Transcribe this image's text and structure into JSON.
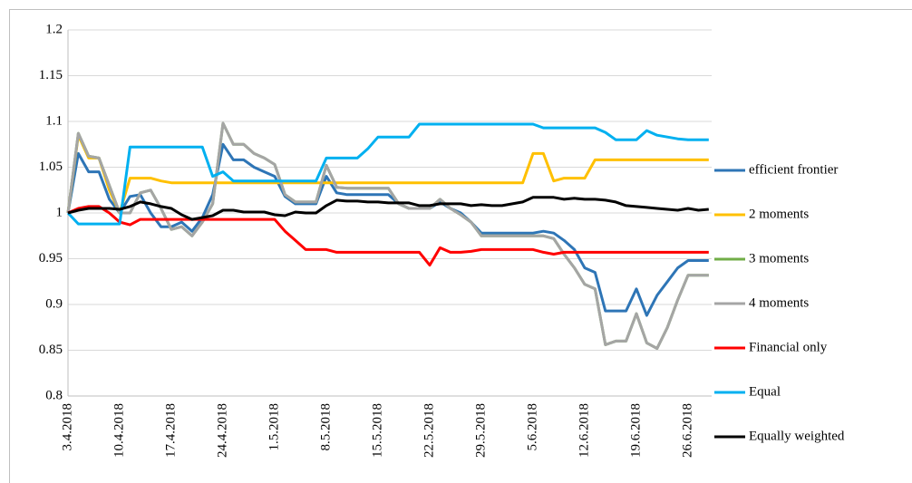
{
  "chart_data": {
    "type": "line",
    "categories": [
      "3.4.2018",
      null,
      null,
      null,
      null,
      "10.4.2018",
      null,
      null,
      null,
      null,
      "17.4.2018",
      null,
      null,
      null,
      null,
      "24.4.2018",
      null,
      null,
      null,
      null,
      "1.5.2018",
      null,
      null,
      null,
      null,
      "8.5.2018",
      null,
      null,
      null,
      null,
      "15.5.2018",
      null,
      null,
      null,
      null,
      "22.5.2018",
      null,
      null,
      null,
      null,
      "29.5.2018",
      null,
      null,
      null,
      null,
      "5.6.2018",
      null,
      null,
      null,
      null,
      "12.6.2018",
      null,
      null,
      null,
      null,
      "19.6.2018",
      null,
      null,
      null,
      null,
      "26.6.2018",
      null,
      null
    ],
    "series": [
      {
        "name": "efficient frontier",
        "color": "#2e75b6",
        "values": [
          1.0,
          1.065,
          1.045,
          1.045,
          1.015,
          1.0,
          1.018,
          1.02,
          1.0,
          0.985,
          0.985,
          0.99,
          0.98,
          0.995,
          1.02,
          1.075,
          1.058,
          1.058,
          1.05,
          1.045,
          1.04,
          1.018,
          1.01,
          1.01,
          1.01,
          1.04,
          1.022,
          1.02,
          1.02,
          1.02,
          1.02,
          1.02,
          1.01,
          1.005,
          1.005,
          1.005,
          1.012,
          1.005,
          1.0,
          0.99,
          0.978,
          0.978,
          0.978,
          0.978,
          0.978,
          0.978,
          0.98,
          0.978,
          0.97,
          0.96,
          0.94,
          0.935,
          0.893,
          0.893,
          0.893,
          0.917,
          0.888,
          0.91,
          0.925,
          0.94,
          0.948,
          0.948,
          0.948
        ]
      },
      {
        "name": "2 moments",
        "color": "#ffc000",
        "values": [
          1.0,
          1.085,
          1.06,
          1.06,
          1.025,
          1.0,
          1.038,
          1.038,
          1.038,
          1.035,
          1.033,
          1.033,
          1.033,
          1.033,
          1.033,
          1.033,
          1.033,
          1.033,
          1.033,
          1.033,
          1.033,
          1.033,
          1.033,
          1.033,
          1.033,
          1.033,
          1.033,
          1.033,
          1.033,
          1.033,
          1.033,
          1.033,
          1.033,
          1.033,
          1.033,
          1.033,
          1.033,
          1.033,
          1.033,
          1.033,
          1.033,
          1.033,
          1.033,
          1.033,
          1.033,
          1.065,
          1.065,
          1.035,
          1.038,
          1.038,
          1.038,
          1.058,
          1.058,
          1.058,
          1.058,
          1.058,
          1.058,
          1.058,
          1.058,
          1.058,
          1.058,
          1.058,
          1.058
        ]
      },
      {
        "name": "3 moments",
        "color": "#70ad47",
        "values": [
          1.0,
          1.087,
          1.062,
          1.06,
          1.03,
          1.0,
          1.0,
          1.022,
          1.025,
          1.005,
          0.982,
          0.985,
          0.975,
          0.99,
          1.01,
          1.098,
          1.075,
          1.075,
          1.065,
          1.06,
          1.053,
          1.02,
          1.012,
          1.012,
          1.012,
          1.052,
          1.028,
          1.027,
          1.027,
          1.027,
          1.027,
          1.027,
          1.01,
          1.005,
          1.005,
          1.005,
          1.015,
          1.005,
          0.998,
          0.99,
          0.975,
          0.975,
          0.975,
          0.975,
          0.975,
          0.975,
          0.975,
          0.972,
          0.955,
          0.94,
          0.922,
          0.917,
          0.856,
          0.86,
          0.86,
          0.89,
          0.858,
          0.852,
          0.875,
          0.905,
          0.932,
          0.932,
          0.932
        ]
      },
      {
        "name": "4 moments",
        "color": "#a5a5a5",
        "values": [
          1.0,
          1.087,
          1.062,
          1.06,
          1.03,
          1.0,
          1.0,
          1.022,
          1.025,
          1.005,
          0.982,
          0.985,
          0.975,
          0.99,
          1.01,
          1.098,
          1.075,
          1.075,
          1.065,
          1.06,
          1.053,
          1.02,
          1.012,
          1.012,
          1.012,
          1.052,
          1.028,
          1.027,
          1.027,
          1.027,
          1.027,
          1.027,
          1.01,
          1.005,
          1.005,
          1.005,
          1.015,
          1.005,
          0.998,
          0.99,
          0.975,
          0.975,
          0.975,
          0.975,
          0.975,
          0.975,
          0.975,
          0.972,
          0.955,
          0.94,
          0.922,
          0.917,
          0.856,
          0.86,
          0.86,
          0.89,
          0.858,
          0.852,
          0.875,
          0.905,
          0.932,
          0.932,
          0.932
        ]
      },
      {
        "name": "Financial only",
        "color": "#ff0000",
        "values": [
          1.0,
          1.005,
          1.007,
          1.007,
          1.0,
          0.99,
          0.987,
          0.993,
          0.993,
          0.993,
          0.993,
          0.993,
          0.993,
          0.993,
          0.993,
          0.993,
          0.993,
          0.993,
          0.993,
          0.993,
          0.993,
          0.98,
          0.97,
          0.96,
          0.96,
          0.96,
          0.957,
          0.957,
          0.957,
          0.957,
          0.957,
          0.957,
          0.957,
          0.957,
          0.957,
          0.943,
          0.962,
          0.957,
          0.957,
          0.958,
          0.96,
          0.96,
          0.96,
          0.96,
          0.96,
          0.96,
          0.957,
          0.955,
          0.957,
          0.957,
          0.957,
          0.957,
          0.957,
          0.957,
          0.957,
          0.957,
          0.957,
          0.957,
          0.957,
          0.957,
          0.957,
          0.957,
          0.957
        ]
      },
      {
        "name": "Equal",
        "color": "#00b0f0",
        "values": [
          1.0,
          0.988,
          0.988,
          0.988,
          0.988,
          0.988,
          1.072,
          1.072,
          1.072,
          1.072,
          1.072,
          1.072,
          1.072,
          1.072,
          1.04,
          1.045,
          1.035,
          1.035,
          1.035,
          1.035,
          1.035,
          1.035,
          1.035,
          1.035,
          1.035,
          1.06,
          1.06,
          1.06,
          1.06,
          1.07,
          1.083,
          1.083,
          1.083,
          1.083,
          1.097,
          1.097,
          1.097,
          1.097,
          1.097,
          1.097,
          1.097,
          1.097,
          1.097,
          1.097,
          1.097,
          1.097,
          1.093,
          1.093,
          1.093,
          1.093,
          1.093,
          1.093,
          1.088,
          1.08,
          1.08,
          1.08,
          1.09,
          1.085,
          1.083,
          1.081,
          1.08,
          1.08,
          1.08
        ]
      },
      {
        "name": "Equally weighted",
        "color": "#000000",
        "values": [
          1.0,
          1.003,
          1.005,
          1.005,
          1.005,
          1.004,
          1.007,
          1.012,
          1.01,
          1.007,
          1.005,
          0.998,
          0.993,
          0.995,
          0.997,
          1.003,
          1.003,
          1.001,
          1.001,
          1.001,
          0.998,
          0.997,
          1.001,
          1.0,
          1.0,
          1.008,
          1.014,
          1.013,
          1.013,
          1.012,
          1.012,
          1.011,
          1.011,
          1.011,
          1.008,
          1.008,
          1.01,
          1.01,
          1.01,
          1.008,
          1.009,
          1.008,
          1.008,
          1.01,
          1.012,
          1.017,
          1.017,
          1.017,
          1.015,
          1.016,
          1.015,
          1.015,
          1.014,
          1.012,
          1.008,
          1.007,
          1.006,
          1.005,
          1.004,
          1.003,
          1.005,
          1.003,
          1.004
        ]
      }
    ],
    "ylim": [
      0.8,
      1.2
    ],
    "yticks": [
      0.8,
      0.85,
      0.9,
      0.95,
      1,
      1.05,
      1.1,
      1.15,
      1.2
    ],
    "grid": true,
    "legend": "right"
  }
}
